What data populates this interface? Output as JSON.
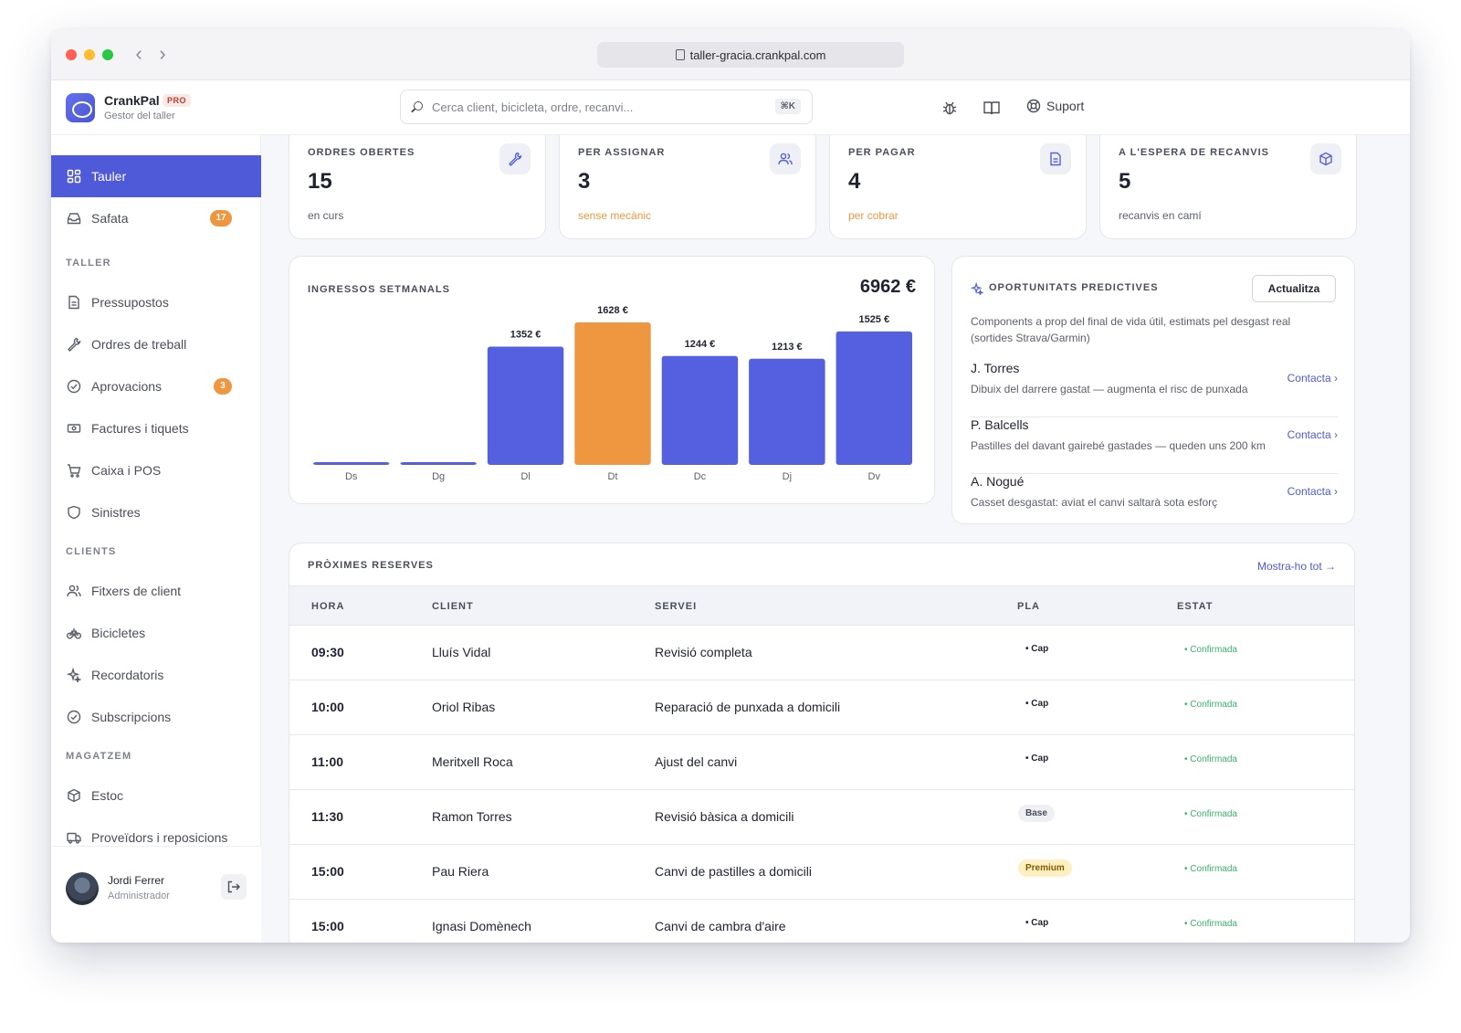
{
  "browser": {
    "url": "taller-gracia.crankpal.com"
  },
  "app": {
    "name": "CrankPal",
    "badge": "PRO",
    "subtitle": "Gestor del taller"
  },
  "search": {
    "placeholder": "Cerca client, bicicleta, ordre, recanvi...",
    "shortcut": "⌘K"
  },
  "header": {
    "support_label": "Suport"
  },
  "sidebar": {
    "items_top": [
      {
        "label": "Tauler",
        "icon": "grid-icon",
        "active": true
      },
      {
        "label": "Safata",
        "icon": "inbox-icon",
        "badge": "17"
      }
    ],
    "sections": [
      {
        "label": "TALLER",
        "items": [
          {
            "label": "Pressupostos",
            "icon": "document-icon"
          },
          {
            "label": "Ordres de treball",
            "icon": "wrench-icon"
          },
          {
            "label": "Aprovacions",
            "icon": "check-circle-icon",
            "badge": "3"
          },
          {
            "label": "Factures i tiquets",
            "icon": "cash-icon"
          },
          {
            "label": "Caixa i POS",
            "icon": "cart-icon"
          },
          {
            "label": "Sinistres",
            "icon": "shield-icon"
          }
        ]
      },
      {
        "label": "CLIENTS",
        "items": [
          {
            "label": "Fitxers de client",
            "icon": "users-icon"
          },
          {
            "label": "Bicicletes",
            "icon": "bicycle-icon"
          },
          {
            "label": "Recordatoris",
            "icon": "sparkle-icon"
          },
          {
            "label": "Subscripcions",
            "icon": "check-circle-icon"
          }
        ]
      },
      {
        "label": "MAGATZEM",
        "items": [
          {
            "label": "Estoc",
            "icon": "box-icon"
          },
          {
            "label": "Proveïdors i reposicions",
            "icon": "truck-icon"
          }
        ]
      }
    ],
    "user": {
      "name": "Jordi Ferrer",
      "role": "Administrador"
    }
  },
  "kpis": [
    {
      "label": "ORDRES OBERTES",
      "value": "15",
      "sub": "en curs",
      "icon": "wrench-icon",
      "warn": false
    },
    {
      "label": "PER ASSIGNAR",
      "value": "3",
      "sub": "sense mecànic",
      "icon": "users-icon",
      "warn": true
    },
    {
      "label": "PER PAGAR",
      "value": "4",
      "sub": "per cobrar",
      "icon": "document-icon",
      "warn": true
    },
    {
      "label": "A L'ESPERA DE RECANVIS",
      "value": "5",
      "sub": "recanvis en camí",
      "icon": "box-icon",
      "warn": false
    }
  ],
  "revenue": {
    "title": "INGRESSOS SETMANALS",
    "total": "6962 €"
  },
  "chart_data": {
    "type": "bar",
    "title": "INGRESSOS SETMANALS",
    "categories": [
      "Ds",
      "Dg",
      "Dl",
      "Dt",
      "Dc",
      "Dj",
      "Dv"
    ],
    "values": [
      0,
      0,
      1352,
      1628,
      1244,
      1213,
      1525
    ],
    "labels": [
      "",
      "",
      "1352 €",
      "1628 €",
      "1244 €",
      "1213 €",
      "1525 €"
    ],
    "highlight_index": 3,
    "ylim": [
      0,
      1628
    ],
    "colors": {
      "bar": "#5560e0",
      "highlight": "#ee9640"
    },
    "grid": false
  },
  "opportunities": {
    "title": "OPORTUNITATS PREDICTIVES",
    "button": "Actualitza",
    "description": "Components a prop del final de vida útil, estimats pel desgast real (sortides Strava/Garmin)",
    "items": [
      {
        "name": "J. Torres",
        "note": "Dibuix del darrere gastat — augmenta el risc de punxada",
        "action": "Contacta ›"
      },
      {
        "name": "P. Balcells",
        "note": "Pastilles del davant gairebé gastades — queden uns 200 km",
        "action": "Contacta ›"
      },
      {
        "name": "A. Nogué",
        "note": "Casset desgastat: aviat el canvi saltarà sota esforç",
        "action": "Contacta ›"
      }
    ]
  },
  "reservations": {
    "title": "PRÒXIMES RESERVES",
    "link": "Mostra-ho tot →",
    "columns": [
      "HORA",
      "CLIENT",
      "SERVEI",
      "PLA",
      "ESTAT"
    ],
    "rows": [
      {
        "time": "09:30",
        "client": "Lluís Vidal",
        "service": "Revisió completa",
        "plan": "Cap",
        "status": "Confirmada"
      },
      {
        "time": "10:00",
        "client": "Oriol Ribas",
        "service": "Reparació de punxada a domicili",
        "plan": "Cap",
        "status": "Confirmada"
      },
      {
        "time": "11:00",
        "client": "Meritxell Roca",
        "service": "Ajust del canvi",
        "plan": "Cap",
        "status": "Confirmada"
      },
      {
        "time": "11:30",
        "client": "Ramon Torres",
        "service": "Revisió bàsica a domicili",
        "plan": "Base",
        "status": "Confirmada"
      },
      {
        "time": "15:00",
        "client": "Pau Riera",
        "service": "Canvi de pastilles a domicili",
        "plan": "Premium",
        "status": "Confirmada"
      },
      {
        "time": "15:00",
        "client": "Ignasi Domènech",
        "service": "Canvi de cambra d'aire",
        "plan": "Cap",
        "status": "Confirmada"
      }
    ]
  }
}
